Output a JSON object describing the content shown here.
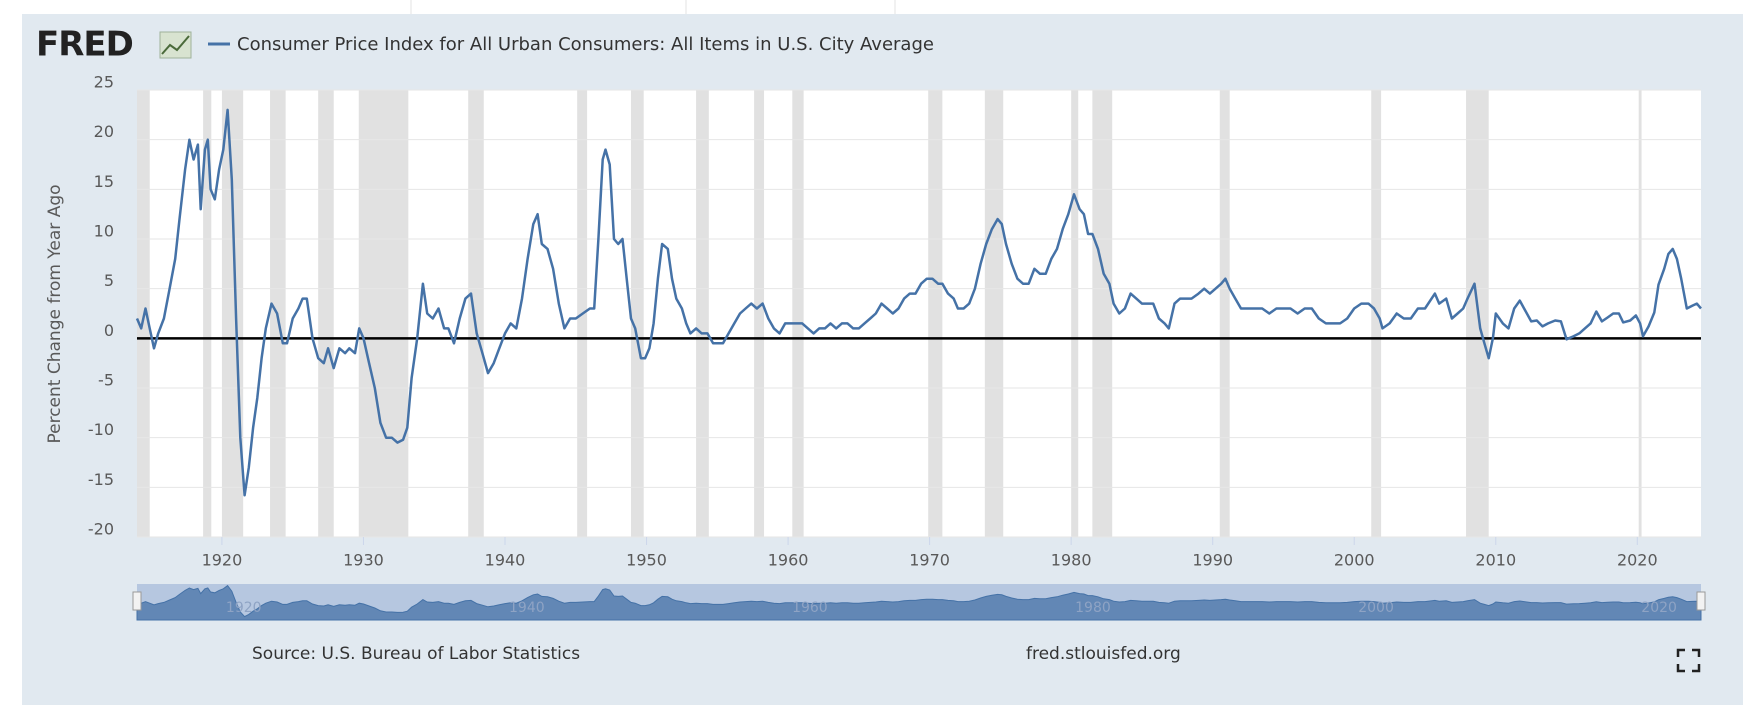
{
  "header": {
    "logo": "FRED"
  },
  "chart_data": {
    "type": "line",
    "y_label": "Percent Change from Year Ago",
    "xlim": [
      1914,
      2024.5
    ],
    "ylim": [
      -20,
      25
    ],
    "xticks": [
      1920,
      1930,
      1940,
      1950,
      1960,
      1970,
      1980,
      1990,
      2000,
      2010,
      2020
    ],
    "yticks": [
      25,
      20,
      15,
      10,
      5,
      0,
      -5,
      -10,
      -15,
      -20
    ],
    "navigator_ticks": [
      1920,
      1940,
      1960,
      1980,
      2000,
      2020
    ],
    "grid": true,
    "recessions": [
      [
        1914,
        1914.9
      ],
      [
        1918.67,
        1919.25
      ],
      [
        1920.0,
        1921.5
      ],
      [
        1923.4,
        1924.5
      ],
      [
        1926.8,
        1927.9
      ],
      [
        1929.67,
        1933.17
      ],
      [
        1937.4,
        1938.5
      ],
      [
        1945.1,
        1945.8
      ],
      [
        1948.9,
        1949.8
      ],
      [
        1953.5,
        1954.4
      ],
      [
        1957.6,
        1958.3
      ],
      [
        1960.3,
        1961.1
      ],
      [
        1969.9,
        1970.9
      ],
      [
        1973.9,
        1975.2
      ],
      [
        1980.0,
        1980.5
      ],
      [
        1981.5,
        1982.9
      ],
      [
        1990.5,
        1991.2
      ],
      [
        2001.2,
        2001.9
      ],
      [
        2007.9,
        2009.5
      ],
      [
        2020.1,
        2020.3
      ]
    ],
    "x": [
      1914.0,
      1914.3,
      1914.6,
      1914.9,
      1915.2,
      1915.5,
      1915.9,
      1916.3,
      1916.7,
      1917.0,
      1917.4,
      1917.7,
      1918.0,
      1918.3,
      1918.5,
      1918.8,
      1919.0,
      1919.2,
      1919.5,
      1919.8,
      1920.1,
      1920.4,
      1920.7,
      1921.0,
      1921.3,
      1921.6,
      1921.9,
      1922.2,
      1922.5,
      1922.8,
      1923.1,
      1923.5,
      1923.9,
      1924.3,
      1924.6,
      1925.0,
      1925.4,
      1925.7,
      1926.0,
      1926.4,
      1926.8,
      1927.2,
      1927.5,
      1927.9,
      1928.3,
      1928.7,
      1929.0,
      1929.4,
      1929.7,
      1930.0,
      1930.4,
      1930.8,
      1931.2,
      1931.6,
      1932.0,
      1932.4,
      1932.8,
      1933.1,
      1933.4,
      1933.8,
      1934.2,
      1934.5,
      1934.9,
      1935.3,
      1935.7,
      1936.0,
      1936.4,
      1936.8,
      1937.2,
      1937.6,
      1938.0,
      1938.4,
      1938.8,
      1939.2,
      1939.6,
      1940.0,
      1940.4,
      1940.8,
      1941.2,
      1941.6,
      1942.0,
      1942.3,
      1942.6,
      1943.0,
      1943.4,
      1943.8,
      1944.2,
      1944.6,
      1945.0,
      1945.5,
      1946.0,
      1946.3,
      1946.6,
      1946.9,
      1947.1,
      1947.4,
      1947.7,
      1948.0,
      1948.3,
      1948.6,
      1948.9,
      1949.2,
      1949.6,
      1949.9,
      1950.2,
      1950.5,
      1950.8,
      1951.1,
      1951.5,
      1951.8,
      1952.1,
      1952.5,
      1952.8,
      1953.1,
      1953.5,
      1953.9,
      1954.3,
      1954.7,
      1955.0,
      1955.4,
      1955.8,
      1956.2,
      1956.6,
      1957.0,
      1957.4,
      1957.8,
      1958.2,
      1958.6,
      1959.0,
      1959.4,
      1959.8,
      1960.2,
      1960.6,
      1961.0,
      1961.4,
      1961.8,
      1962.2,
      1962.6,
      1963.0,
      1963.4,
      1963.8,
      1964.2,
      1964.6,
      1965.0,
      1965.4,
      1965.8,
      1966.2,
      1966.6,
      1967.0,
      1967.4,
      1967.8,
      1968.2,
      1968.6,
      1969.0,
      1969.4,
      1969.8,
      1970.2,
      1970.6,
      1970.9,
      1971.3,
      1971.7,
      1972.0,
      1972.4,
      1972.8,
      1973.2,
      1973.6,
      1974.0,
      1974.4,
      1974.8,
      1975.1,
      1975.4,
      1975.8,
      1976.2,
      1976.6,
      1977.0,
      1977.4,
      1977.8,
      1978.2,
      1978.6,
      1979.0,
      1979.4,
      1979.8,
      1980.2,
      1980.6,
      1980.9,
      1981.2,
      1981.5,
      1981.9,
      1982.3,
      1982.7,
      1983.0,
      1983.4,
      1983.8,
      1984.2,
      1984.6,
      1985.0,
      1985.4,
      1985.8,
      1986.2,
      1986.6,
      1986.9,
      1987.3,
      1987.7,
      1988.0,
      1988.5,
      1989.0,
      1989.4,
      1989.8,
      1990.2,
      1990.6,
      1990.9,
      1991.2,
      1991.6,
      1992.0,
      1992.5,
      1993.0,
      1993.5,
      1994.0,
      1994.5,
      1995.0,
      1995.5,
      1996.0,
      1996.5,
      1997.0,
      1997.5,
      1998.0,
      1998.5,
      1999.0,
      1999.5,
      2000.0,
      2000.5,
      2001.0,
      2001.4,
      2001.8,
      2002.0,
      2002.5,
      2003.0,
      2003.5,
      2004.0,
      2004.5,
      2005.0,
      2005.7,
      2006.0,
      2006.5,
      2006.9,
      2007.3,
      2007.7,
      2008.0,
      2008.5,
      2008.9,
      2009.2,
      2009.5,
      2009.8,
      2010.0,
      2010.5,
      2010.9,
      2011.3,
      2011.7,
      2012.0,
      2012.5,
      2012.9,
      2013.3,
      2013.7,
      2014.2,
      2014.6,
      2015.0,
      2015.5,
      2015.9,
      2016.3,
      2016.7,
      2017.1,
      2017.5,
      2017.9,
      2018.3,
      2018.7,
      2019.0,
      2019.5,
      2019.9,
      2020.2,
      2020.4,
      2020.8,
      2021.2,
      2021.5,
      2021.9,
      2022.2,
      2022.5,
      2022.8,
      2023.1,
      2023.5,
      2023.9,
      2024.2,
      2024.5
    ],
    "series": [
      {
        "name": "Consumer Price Index for All Urban Consumers: All Items in U.S. City Average",
        "color": "#4572a7",
        "values": [
          2.0,
          1.0,
          3.0,
          1.0,
          -1.0,
          0.5,
          2.0,
          5.0,
          8.0,
          12.0,
          17.0,
          20.0,
          18.0,
          19.5,
          13.0,
          19.0,
          20.0,
          15.0,
          14.0,
          17.0,
          19.0,
          23.0,
          16.0,
          2.0,
          -10.0,
          -15.8,
          -13.0,
          -9.0,
          -6.0,
          -2.0,
          1.0,
          3.5,
          2.5,
          -0.5,
          -0.5,
          2.0,
          3.0,
          4.0,
          4.0,
          0.0,
          -2.0,
          -2.5,
          -1.0,
          -3.0,
          -1.0,
          -1.5,
          -1.0,
          -1.5,
          1.0,
          0.0,
          -2.5,
          -5.0,
          -8.5,
          -10.0,
          -10.0,
          -10.5,
          -10.2,
          -9.0,
          -4.0,
          0.0,
          5.5,
          2.5,
          2.0,
          3.0,
          1.0,
          1.0,
          -0.5,
          2.0,
          4.0,
          4.5,
          0.5,
          -1.5,
          -3.5,
          -2.5,
          -1.0,
          0.5,
          1.5,
          1.0,
          4.0,
          8.0,
          11.5,
          12.5,
          9.5,
          9.0,
          7.0,
          3.5,
          1.0,
          2.0,
          2.0,
          2.5,
          3.0,
          3.0,
          10.0,
          18.0,
          19.0,
          17.5,
          10.0,
          9.5,
          10.0,
          6.0,
          2.0,
          1.0,
          -2.0,
          -2.0,
          -1.0,
          1.5,
          6.0,
          9.5,
          9.0,
          6.0,
          4.0,
          3.0,
          1.5,
          0.5,
          1.0,
          0.5,
          0.5,
          -0.5,
          -0.5,
          -0.5,
          0.5,
          1.5,
          2.5,
          3.0,
          3.5,
          3.0,
          3.5,
          2.0,
          1.0,
          0.5,
          1.5,
          1.5,
          1.5,
          1.5,
          1.0,
          0.5,
          1.0,
          1.0,
          1.5,
          1.0,
          1.5,
          1.5,
          1.0,
          1.0,
          1.5,
          2.0,
          2.5,
          3.5,
          3.0,
          2.5,
          3.0,
          4.0,
          4.5,
          4.5,
          5.5,
          6.0,
          6.0,
          5.5,
          5.5,
          4.5,
          4.0,
          3.0,
          3.0,
          3.5,
          5.0,
          7.5,
          9.5,
          11.0,
          12.0,
          11.5,
          9.5,
          7.5,
          6.0,
          5.5,
          5.5,
          7.0,
          6.5,
          6.5,
          8.0,
          9.0,
          11.0,
          12.5,
          14.5,
          13.0,
          12.5,
          10.5,
          10.5,
          9.0,
          6.5,
          5.5,
          3.5,
          2.5,
          3.0,
          4.5,
          4.0,
          3.5,
          3.5,
          3.5,
          2.0,
          1.5,
          1.0,
          3.5,
          4.0,
          4.0,
          4.0,
          4.5,
          5.0,
          4.5,
          5.0,
          5.5,
          6.0,
          5.0,
          4.0,
          3.0,
          3.0,
          3.0,
          3.0,
          2.5,
          3.0,
          3.0,
          3.0,
          2.5,
          3.0,
          3.0,
          2.0,
          1.5,
          1.5,
          1.5,
          2.0,
          3.0,
          3.5,
          3.5,
          3.0,
          2.0,
          1.0,
          1.5,
          2.5,
          2.0,
          2.0,
          3.0,
          3.0,
          4.5,
          3.5,
          4.0,
          2.0,
          2.5,
          3.0,
          4.0,
          5.5,
          1.0,
          -0.5,
          -2.0,
          0.0,
          2.5,
          1.5,
          1.0,
          3.0,
          3.8,
          3.0,
          1.7,
          1.8,
          1.2,
          1.5,
          1.8,
          1.7,
          -0.1,
          0.2,
          0.5,
          1.0,
          1.5,
          2.7,
          1.7,
          2.1,
          2.5,
          2.5,
          1.6,
          1.8,
          2.3,
          1.5,
          0.2,
          1.2,
          2.6,
          5.4,
          7.0,
          8.5,
          9.0,
          8.0,
          6.0,
          3.0,
          3.3,
          3.5,
          3.0
        ]
      }
    ]
  },
  "footer": {
    "source": "Source: U.S. Bureau of Labor Statistics",
    "site": "fred.stlouisfed.org"
  }
}
